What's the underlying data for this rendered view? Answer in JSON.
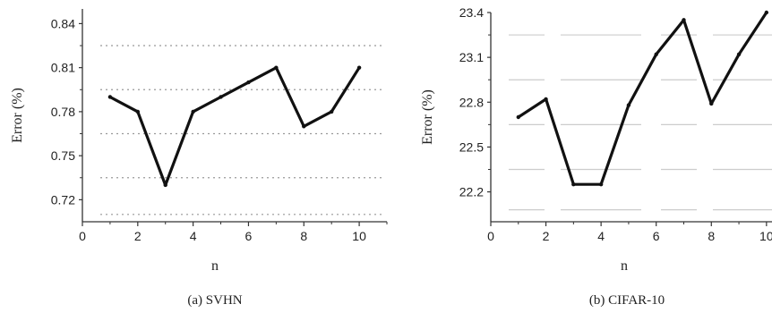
{
  "chart_data": [
    {
      "type": "line",
      "caption": "(a) SVHN",
      "xlabel": "n",
      "ylabel": "Error (%)",
      "xlim": [
        0,
        11
      ],
      "ylim": [
        0.705,
        0.85
      ],
      "xticks": [
        0,
        2,
        4,
        6,
        8,
        10
      ],
      "yticks": [
        0.72,
        0.75,
        0.78,
        0.81,
        0.84
      ],
      "ytick_labels": [
        "0.72",
        "0.75",
        "0.78",
        "0.81",
        "0.84"
      ],
      "grid": "dotted horizontal",
      "line_color": "#111111",
      "x": [
        1,
        2,
        3,
        4,
        5,
        6,
        7,
        8,
        9,
        10
      ],
      "y": [
        0.79,
        0.78,
        0.73,
        0.78,
        0.79,
        0.8,
        0.81,
        0.77,
        0.78,
        0.81
      ]
    },
    {
      "type": "line",
      "caption": "(b) CIFAR-10",
      "xlabel": "n",
      "ylabel": "Error (%)",
      "xlim": [
        0,
        10.2
      ],
      "ylim": [
        22.0,
        23.4
      ],
      "xticks": [
        0,
        2,
        4,
        6,
        8,
        10
      ],
      "yticks": [
        22.2,
        22.5,
        22.8,
        23.1,
        23.4
      ],
      "ytick_labels": [
        "22.2",
        "22.5",
        "22.8",
        "23.1",
        "23.4"
      ],
      "grid": "dashed horizontal",
      "line_color": "#111111",
      "x": [
        1,
        2,
        3,
        4,
        5,
        6,
        7,
        8,
        9,
        10
      ],
      "y": [
        22.7,
        22.82,
        22.25,
        22.25,
        22.78,
        23.12,
        23.35,
        22.79,
        23.12,
        23.4
      ]
    }
  ]
}
